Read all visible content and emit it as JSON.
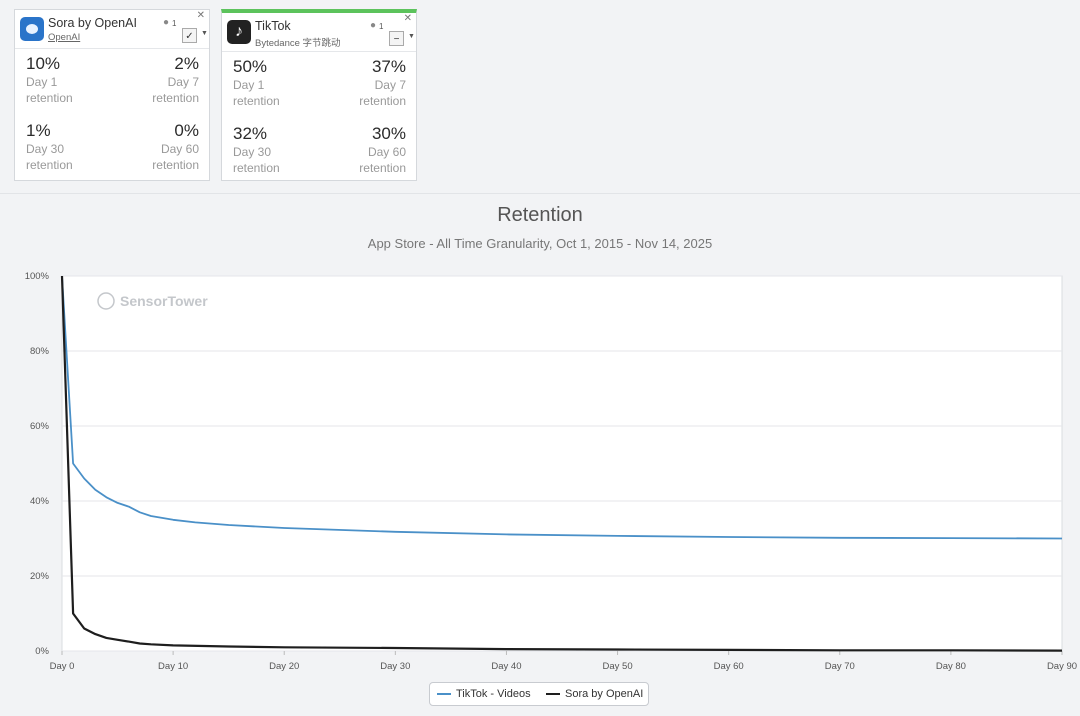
{
  "cards": [
    {
      "app_name": "Sora by OpenAI",
      "publisher": "OpenAI",
      "rank": "1",
      "check": "✓",
      "metrics": [
        {
          "value": "10%",
          "day": "Day 1",
          "label": "retention"
        },
        {
          "value": "2%",
          "day": "Day 7",
          "label": "retention"
        },
        {
          "value": "1%",
          "day": "Day 30",
          "label": "retention"
        },
        {
          "value": "0%",
          "day": "Day 60",
          "label": "retention"
        }
      ]
    },
    {
      "app_name": "TikTok",
      "publisher": "Bytedance 字节跳动",
      "rank": "1",
      "check": "−",
      "metrics": [
        {
          "value": "50%",
          "day": "Day 1",
          "label": "retention"
        },
        {
          "value": "37%",
          "day": "Day 7",
          "label": "retention"
        },
        {
          "value": "32%",
          "day": "Day 30",
          "label": "retention"
        },
        {
          "value": "30%",
          "day": "Day 60",
          "label": "retention"
        }
      ]
    }
  ],
  "watermark": "SensorTower",
  "colors": {
    "tiktok": "#4a90c8",
    "sora": "#1e1e1e",
    "accent_green": "#5cc35c",
    "grid": "#e4e6ea"
  },
  "chart_data": {
    "type": "line",
    "title": "Retention",
    "subtitle": "App Store - All Time Granularity, Oct 1, 2015 - Nov 14, 2025",
    "y_ticks": [
      "0%",
      "20%",
      "40%",
      "60%",
      "80%",
      "100%"
    ],
    "x_ticks": [
      "Day 0",
      "Day 10",
      "Day 20",
      "Day 30",
      "Day 40",
      "Day 50",
      "Day 60",
      "Day 70",
      "Day 80",
      "Day 90"
    ],
    "xlim": [
      0,
      90
    ],
    "ylim": [
      0,
      100
    ],
    "series": [
      {
        "name": "TikTok - Videos",
        "x": [
          0,
          1,
          2,
          3,
          4,
          5,
          6,
          7,
          8,
          10,
          12,
          15,
          20,
          30,
          40,
          50,
          60,
          70,
          80,
          90
        ],
        "y": [
          100,
          50,
          46,
          43,
          41,
          39.5,
          38.5,
          37,
          36,
          35,
          34.3,
          33.6,
          32.8,
          31.8,
          31.1,
          30.7,
          30.4,
          30.2,
          30.1,
          30
        ]
      },
      {
        "name": "Sora by OpenAI",
        "x": [
          0,
          1,
          2,
          3,
          4,
          5,
          6,
          7,
          8,
          10,
          15,
          20,
          30,
          40,
          50,
          60,
          70,
          80,
          90
        ],
        "y": [
          100,
          10,
          6,
          4.5,
          3.5,
          3,
          2.5,
          2,
          1.8,
          1.5,
          1.2,
          1,
          0.8,
          0.5,
          0.4,
          0.3,
          0.2,
          0.2,
          0.1
        ]
      }
    ],
    "legend": "bottom-center",
    "grid": true
  }
}
